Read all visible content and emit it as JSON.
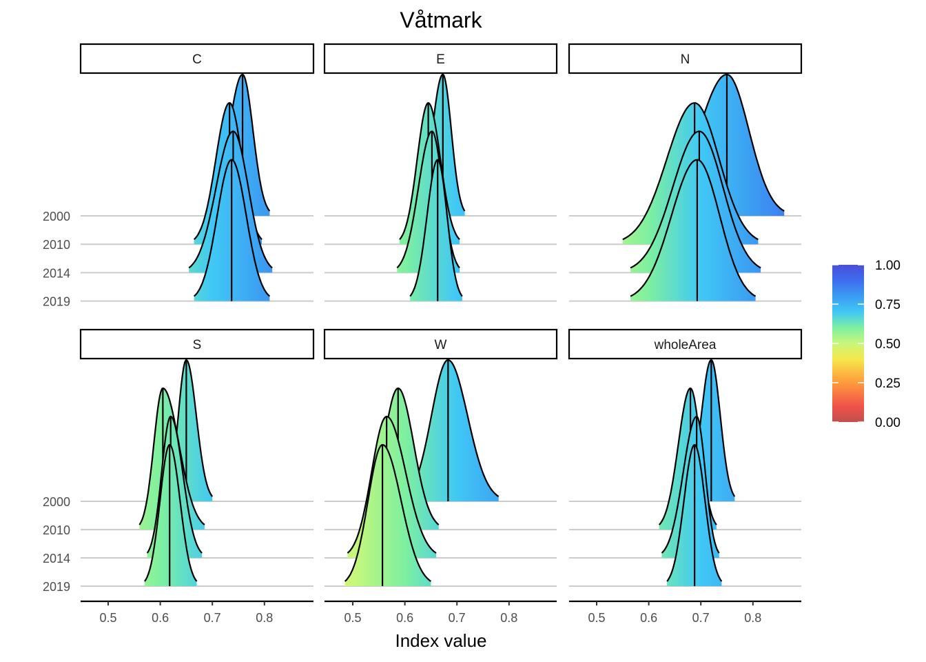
{
  "chart_data": {
    "type": "ridgeline",
    "title": "Våtmark",
    "xlabel": "Index value",
    "ylabel": "",
    "xlim": [
      0.45,
      0.9
    ],
    "x_ticks": [
      "0.5",
      "0.6",
      "0.7",
      "0.8"
    ],
    "categories": [
      "2000",
      "2010",
      "2014",
      "2019"
    ],
    "fill_scale": {
      "type": "continuous",
      "colormap": "turbo",
      "limits": [
        0,
        1
      ],
      "ticks": [
        "0.00",
        "0.25",
        "0.50",
        "0.75",
        "1.00"
      ]
    },
    "grid": "horizontal baselines only",
    "legend_position": "right",
    "panels": [
      {
        "name": "C",
        "series": [
          {
            "year": "2000",
            "median": 0.758,
            "min": 0.69,
            "max": 0.81
          },
          {
            "year": "2010",
            "median": 0.733,
            "min": 0.665,
            "max": 0.795
          },
          {
            "year": "2014",
            "median": 0.74,
            "min": 0.655,
            "max": 0.815
          },
          {
            "year": "2019",
            "median": 0.737,
            "min": 0.665,
            "max": 0.81
          }
        ]
      },
      {
        "name": "E",
        "series": [
          {
            "year": "2000",
            "median": 0.673,
            "min": 0.62,
            "max": 0.715
          },
          {
            "year": "2010",
            "median": 0.645,
            "min": 0.59,
            "max": 0.705
          },
          {
            "year": "2014",
            "median": 0.652,
            "min": 0.585,
            "max": 0.705
          },
          {
            "year": "2019",
            "median": 0.663,
            "min": 0.61,
            "max": 0.71
          }
        ]
      },
      {
        "name": "N",
        "series": [
          {
            "year": "2000",
            "median": 0.75,
            "min": 0.61,
            "max": 0.86
          },
          {
            "year": "2010",
            "median": 0.688,
            "min": 0.55,
            "max": 0.81
          },
          {
            "year": "2014",
            "median": 0.697,
            "min": 0.565,
            "max": 0.815
          },
          {
            "year": "2019",
            "median": 0.693,
            "min": 0.565,
            "max": 0.805
          }
        ]
      },
      {
        "name": "S",
        "series": [
          {
            "year": "2000",
            "median": 0.65,
            "min": 0.61,
            "max": 0.7
          },
          {
            "year": "2010",
            "median": 0.605,
            "min": 0.56,
            "max": 0.685
          },
          {
            "year": "2014",
            "median": 0.62,
            "min": 0.575,
            "max": 0.68
          },
          {
            "year": "2019",
            "median": 0.618,
            "min": 0.57,
            "max": 0.67
          }
        ]
      },
      {
        "name": "W",
        "series": [
          {
            "year": "2000",
            "median": 0.683,
            "min": 0.6,
            "max": 0.78
          },
          {
            "year": "2010",
            "median": 0.587,
            "min": 0.515,
            "max": 0.665
          },
          {
            "year": "2014",
            "median": 0.565,
            "min": 0.49,
            "max": 0.66
          },
          {
            "year": "2019",
            "median": 0.557,
            "min": 0.485,
            "max": 0.65
          }
        ]
      },
      {
        "name": "wholeArea",
        "series": [
          {
            "year": "2000",
            "median": 0.72,
            "min": 0.67,
            "max": 0.765
          },
          {
            "year": "2010",
            "median": 0.68,
            "min": 0.62,
            "max": 0.73
          },
          {
            "year": "2014",
            "median": 0.692,
            "min": 0.625,
            "max": 0.735
          },
          {
            "year": "2019",
            "median": 0.688,
            "min": 0.635,
            "max": 0.74
          }
        ]
      }
    ]
  }
}
